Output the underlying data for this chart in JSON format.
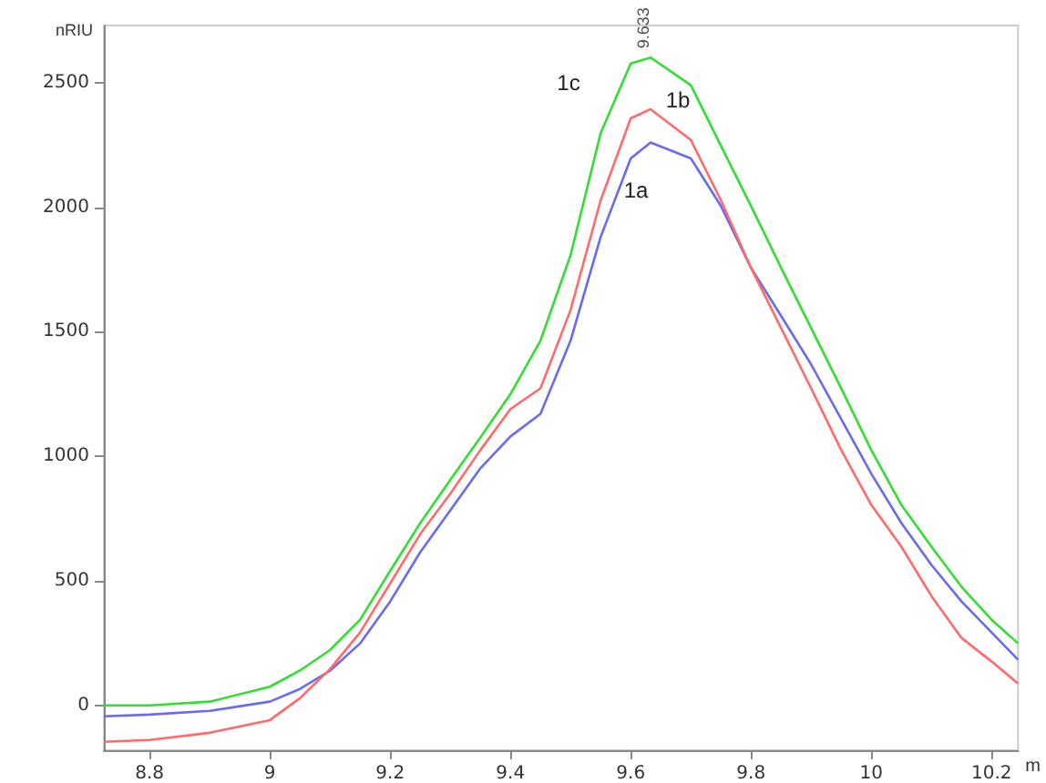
{
  "chart_data": {
    "type": "line",
    "xlabel": "m",
    "ylabel": "nRIU",
    "xlim": [
      8.724,
      10.244
    ],
    "xticks": [
      8.8,
      9,
      9.2,
      9.4,
      9.6,
      9.8,
      10,
      10.2
    ],
    "ylim": [
      -180,
      2730
    ],
    "yticks": [
      0,
      500,
      1000,
      1500,
      2000,
      2500
    ],
    "marker": "none",
    "line_style": "solid",
    "x": [
      8.724,
      8.8,
      8.9,
      9.0,
      9.05,
      9.1,
      9.15,
      9.2,
      9.25,
      9.3,
      9.35,
      9.4,
      9.45,
      9.5,
      9.55,
      9.6,
      9.633,
      9.7,
      9.75,
      9.8,
      9.85,
      9.9,
      9.95,
      10.0,
      10.05,
      10.1,
      10.15,
      10.2,
      10.244
    ],
    "series": [
      {
        "name": "1a",
        "color": "#6a6aee",
        "values": [
          -44,
          -37,
          -22,
          15,
          66,
          139,
          249,
          417,
          615,
          783,
          952,
          1080,
          1171,
          1465,
          1881,
          2196,
          2260,
          2196,
          2005,
          1757,
          1564,
          1369,
          1149,
          930,
          732,
          564,
          417,
          293,
          183
        ]
      },
      {
        "name": "1b",
        "color": "#ff6a6a",
        "values": [
          -146,
          -139,
          -110,
          -59,
          29,
          146,
          293,
          490,
          688,
          850,
          1025,
          1190,
          1273,
          1588,
          2028,
          2357,
          2394,
          2270,
          2028,
          1757,
          1515,
          1273,
          1025,
          805,
          637,
          439,
          271,
          176,
          88
        ]
      },
      {
        "name": "1c",
        "color": "#33dd33",
        "values": [
          0,
          0,
          15,
          75,
          140,
          222,
          344,
          540,
          732,
          906,
          1076,
          1250,
          1465,
          1808,
          2298,
          2577,
          2601,
          2490,
          2247,
          2005,
          1757,
          1515,
          1273,
          1025,
          805,
          637,
          476,
          344,
          249
        ]
      }
    ],
    "annotations": [
      {
        "text": "9.633",
        "x": 9.633,
        "y": 2601
      }
    ]
  }
}
